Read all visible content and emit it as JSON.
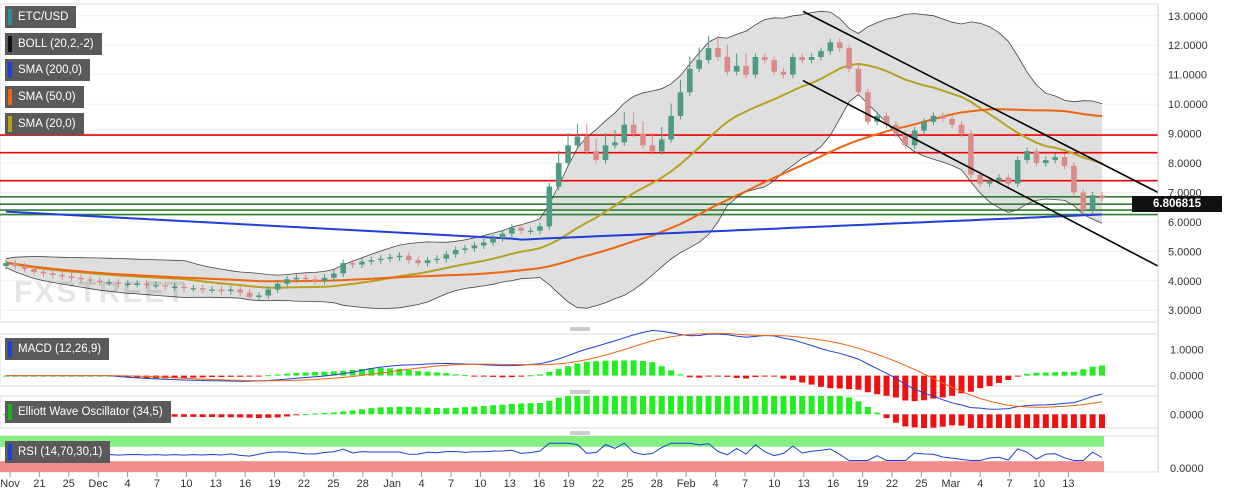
{
  "legends": [
    {
      "key": "pair",
      "label": "ETC/USD",
      "color": "#2f8f8f"
    },
    {
      "key": "boll",
      "label": "BOLL (20,2,-2)",
      "color": "#111111"
    },
    {
      "key": "sma200",
      "label": "SMA (200,0)",
      "color": "#1f3fd6"
    },
    {
      "key": "sma50",
      "label": "SMA (50,0)",
      "color": "#ee6611"
    },
    {
      "key": "sma20",
      "label": "SMA (20,0)",
      "color": "#b8a020"
    }
  ],
  "price_tag": "6.806815",
  "watermark": "FXSTREET",
  "panels": {
    "macd": {
      "label": "MACD (12,26,9)"
    },
    "ewo": {
      "label": "Elliott Wave Oscillator (34,5)"
    },
    "rsi": {
      "label": "RSI (14,70,30,1)"
    }
  },
  "colors": {
    "up": "#4e9a84",
    "down": "#d98b87",
    "support": "#2e7d32",
    "resistance": "#ee0000",
    "histogram_up": "#22ee22",
    "histogram_down": "#ee1111",
    "band_fill": "#d9d9d9"
  },
  "chart_data": [
    {
      "type": "candlestick",
      "panel": "price",
      "ylim": [
        2.6,
        13.4
      ],
      "yticks": [
        "13.0000",
        "12.0000",
        "11.0000",
        "10.0000",
        "9.0000",
        "8.0000",
        "7.0000",
        "6.0000",
        "5.0000",
        "4.0000",
        "3.0000"
      ],
      "xlabels": [
        "Nov",
        "21",
        "25",
        "Dec",
        "4",
        "7",
        "10",
        "13",
        "16",
        "19",
        "22",
        "25",
        "28",
        "Jan",
        "4",
        "7",
        "10",
        "13",
        "16",
        "19",
        "22",
        "25",
        "28",
        "Feb",
        "4",
        "7",
        "10",
        "13",
        "16",
        "19",
        "22",
        "25",
        "Mar",
        "4",
        "7",
        "10",
        "13"
      ],
      "close": [
        4.6,
        4.5,
        4.4,
        4.3,
        4.25,
        4.2,
        4.15,
        4.1,
        4.05,
        4.0,
        3.95,
        3.95,
        3.9,
        3.9,
        3.9,
        3.85,
        3.85,
        3.8,
        3.8,
        3.75,
        3.75,
        3.7,
        3.7,
        3.65,
        3.7,
        3.6,
        3.45,
        3.5,
        3.7,
        3.9,
        4.05,
        4.1,
        4.05,
        4.0,
        4.1,
        4.25,
        4.6,
        4.55,
        4.65,
        4.7,
        4.75,
        4.8,
        4.85,
        4.7,
        4.6,
        4.7,
        4.75,
        4.9,
        5.05,
        5.1,
        5.2,
        5.3,
        5.45,
        5.6,
        5.8,
        5.7,
        5.7,
        5.85,
        7.2,
        8.0,
        8.6,
        8.9,
        8.4,
        8.1,
        8.6,
        8.7,
        9.3,
        9.0,
        8.6,
        8.4,
        8.8,
        9.6,
        10.4,
        11.2,
        11.5,
        11.9,
        11.6,
        11.1,
        11.3,
        11.0,
        11.6,
        11.5,
        11.1,
        11.0,
        11.6,
        11.5,
        11.6,
        11.8,
        12.1,
        11.9,
        11.2,
        10.4,
        9.4,
        9.6,
        9.3,
        9.0,
        8.6,
        9.1,
        9.4,
        9.6,
        9.5,
        9.3,
        9.0,
        7.6,
        7.3,
        7.4,
        7.5,
        7.3,
        8.1,
        8.4,
        8.0,
        8.1,
        8.2,
        7.9,
        7.0,
        6.4,
        6.9,
        6.8
      ],
      "support_levels": [
        6.85,
        6.6,
        6.4,
        6.25
      ],
      "resistance_levels": [
        8.95,
        8.35,
        7.4
      ],
      "sma200_last": 6.25,
      "sma50_last": 9.75,
      "sma20_last": 8.1
    },
    {
      "type": "line+histogram",
      "panel": "macd",
      "ylim": [
        -0.4,
        1.6
      ],
      "yticks": [
        "1.0000",
        "0.0000"
      ]
    },
    {
      "type": "histogram",
      "panel": "ewo",
      "ylim": [
        -0.6,
        0.8
      ],
      "yticks": [
        "0.0000"
      ]
    },
    {
      "type": "line",
      "panel": "rsi",
      "ylim": [
        0,
        100
      ],
      "yticks": [
        "0.0000"
      ],
      "levels": [
        70,
        30
      ]
    }
  ]
}
